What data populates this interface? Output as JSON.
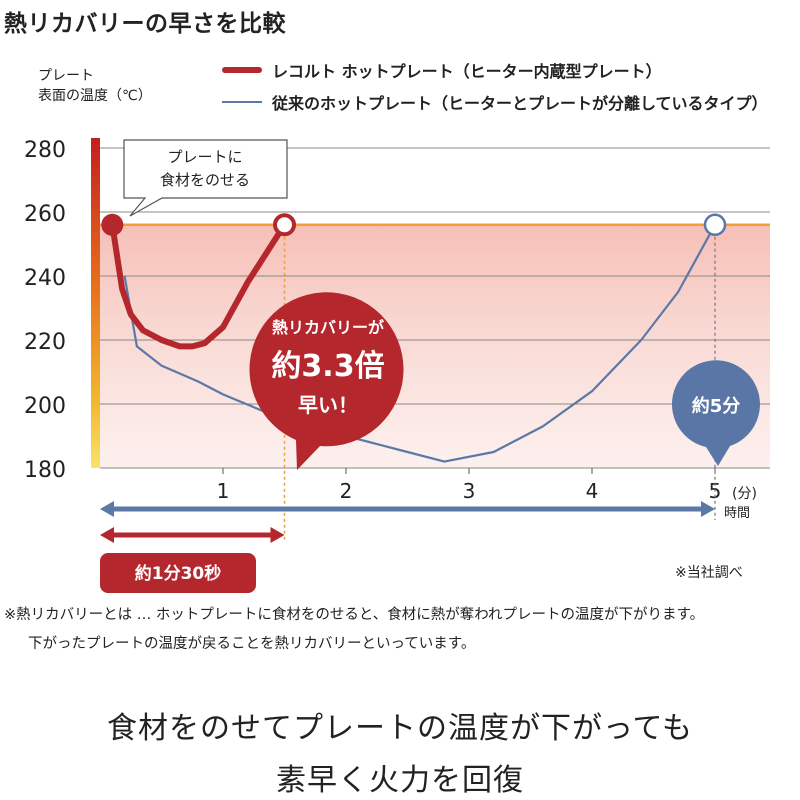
{
  "page": {
    "title": "熱リカバリーの早さを比較",
    "y_axis_label_line1": "プレート",
    "y_axis_label_line2": "表面の温度（℃）",
    "legend": [
      {
        "label": "レコルト ホットプレート（ヒーター内蔵型プレート）",
        "color": "#b3272d"
      },
      {
        "label": "従来のホットプレート（ヒーターとプレートが分離しているタイプ）",
        "color": "#5b78a6"
      }
    ],
    "callout_place_food_line1": "プレートに",
    "callout_place_food_line2": "食材をのせる",
    "badge_red_line1": "熱リカバリーが",
    "badge_red_line2": "約3.3倍",
    "badge_red_line3": "早い！",
    "badge_blue": "約5分",
    "pill_red": "約1分30秒",
    "x_unit_top": "(分)",
    "x_unit_bottom": "時間",
    "source_note": "※当社調べ",
    "footnote_line1": "※熱リカバリーとは … ホットプレートに食材をのせると、食材に熱が奪われプレートの温度が下がります。",
    "footnote_line2": "下がったプレートの温度が戻ることを熱リカバリーといっています。",
    "tagline_line1": "食材をのせてプレートの温度が下がっても",
    "tagline_line2": "素早く火力を回復",
    "colors": {
      "red": "#b3272d",
      "blue": "#5b78a6",
      "target_line": "#f0a030",
      "band_top": "#f6c0b8",
      "grid": "#888888"
    }
  },
  "chart_data": {
    "type": "line",
    "xlabel": "時間",
    "ylabel": "プレート表面の温度（℃）",
    "xlim": [
      0,
      5
    ],
    "ylim": [
      180,
      280
    ],
    "x_ticks": [
      1,
      2,
      3,
      4,
      5
    ],
    "y_ticks": [
      180,
      200,
      220,
      240,
      260,
      280
    ],
    "target_temperature": 256,
    "grid": true,
    "legend_position": "top",
    "series": [
      {
        "name": "レコルト ホットプレート（ヒーター内蔵型プレート）",
        "x": [
          0.1,
          0.18,
          0.25,
          0.35,
          0.5,
          0.65,
          0.75,
          0.85,
          1.0,
          1.2,
          1.5
        ],
        "y": [
          256,
          236,
          228,
          223,
          220,
          218,
          218,
          219,
          224,
          238,
          256
        ]
      },
      {
        "name": "従来のホットプレート（ヒーターとプレートが分離しているタイプ）",
        "x": [
          0.2,
          0.3,
          0.5,
          0.8,
          1.0,
          1.5,
          2.0,
          2.5,
          2.8,
          3.2,
          3.6,
          4.0,
          4.4,
          4.7,
          5.0
        ],
        "y": [
          240,
          218,
          212,
          207,
          203,
          195,
          190,
          185,
          182,
          185,
          193,
          204,
          220,
          235,
          256
        ]
      }
    ]
  }
}
